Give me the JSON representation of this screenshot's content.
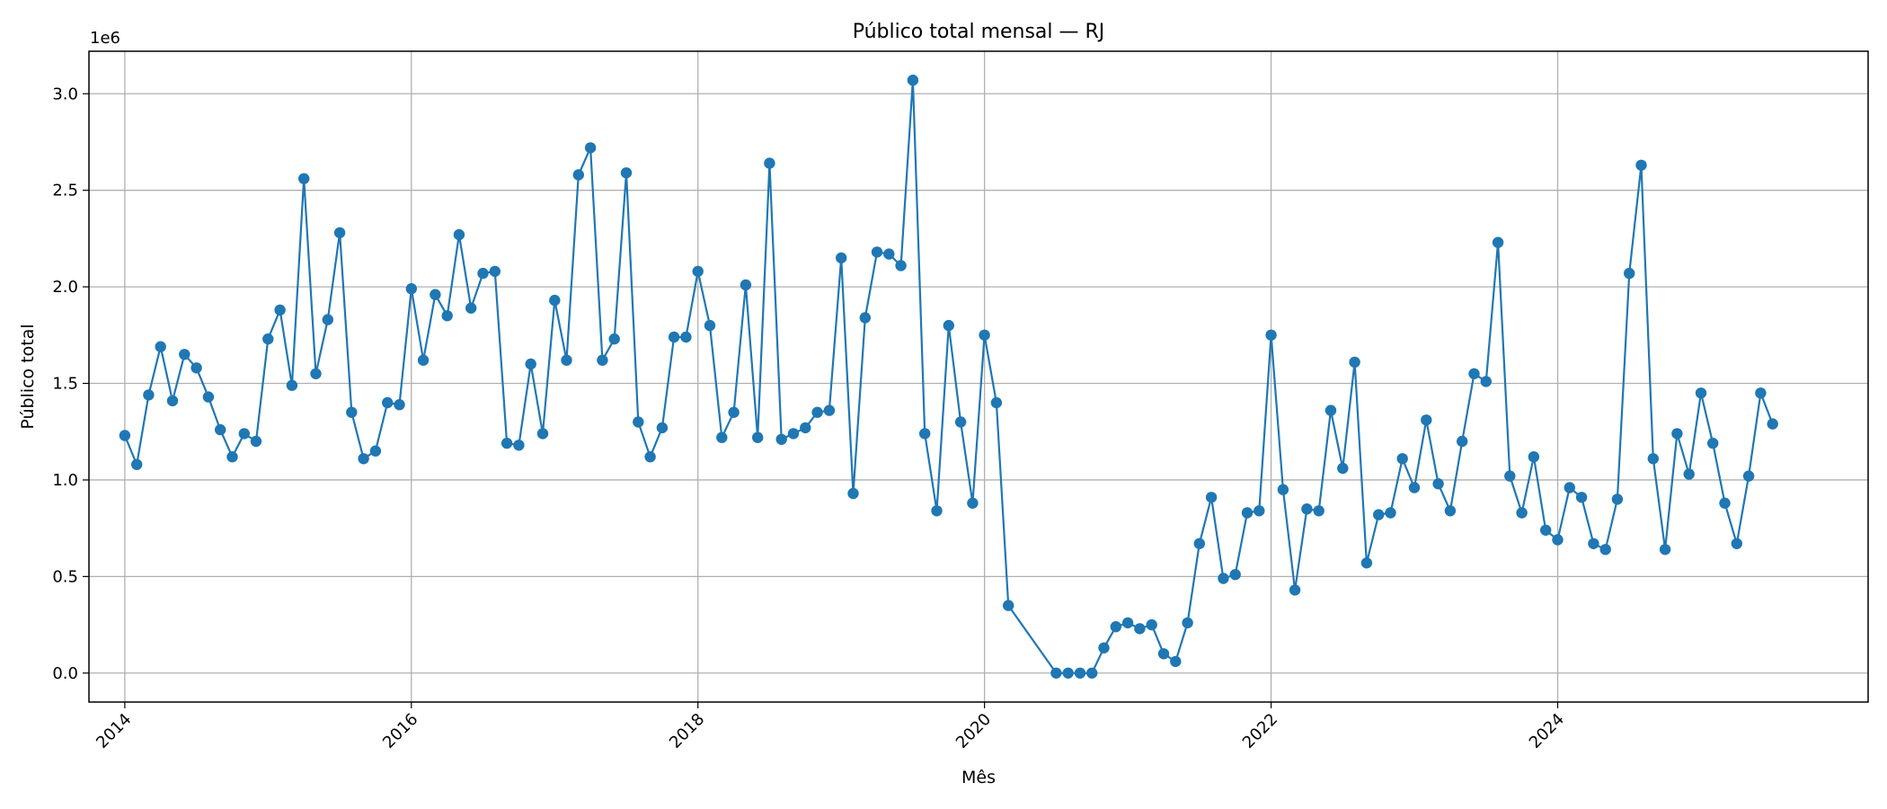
{
  "chart_data": {
    "type": "line",
    "title": "Público total mensal — RJ",
    "xlabel": "Mês",
    "ylabel": "Público total",
    "y_offset_label": "1e6",
    "x_ticks": [
      "2014",
      "2016",
      "2018",
      "2020",
      "2022",
      "2024"
    ],
    "y_ticks": [
      "0.0",
      "0.5",
      "1.0",
      "1.5",
      "2.0",
      "2.5",
      "3.0"
    ],
    "xlim": [
      "2013-10",
      "2026-03"
    ],
    "ylim": [
      -0.15,
      3.22
    ],
    "y_unit_multiplier": 1000000,
    "grid": true,
    "markers": true,
    "colors": {
      "series": "#1f77b4",
      "grid": "#b0b0b0",
      "axes": "#000000"
    },
    "series": [
      {
        "x": [
          "2014-01",
          "2014-02",
          "2014-03",
          "2014-04",
          "2014-05",
          "2014-06",
          "2014-07",
          "2014-08",
          "2014-09",
          "2014-10",
          "2014-11",
          "2014-12",
          "2015-01",
          "2015-02",
          "2015-03",
          "2015-04",
          "2015-05",
          "2015-06",
          "2015-07",
          "2015-08",
          "2015-09",
          "2015-10",
          "2015-11",
          "2015-12",
          "2016-01",
          "2016-02",
          "2016-03",
          "2016-04",
          "2016-05",
          "2016-06",
          "2016-07",
          "2016-08",
          "2016-09",
          "2016-10",
          "2016-11",
          "2016-12",
          "2017-01",
          "2017-02",
          "2017-03",
          "2017-04",
          "2017-05",
          "2017-06",
          "2017-07",
          "2017-08",
          "2017-09",
          "2017-10",
          "2017-11",
          "2017-12",
          "2018-01",
          "2018-02",
          "2018-03",
          "2018-04",
          "2018-05",
          "2018-06",
          "2018-07",
          "2018-08",
          "2018-09",
          "2018-10",
          "2018-11",
          "2018-12",
          "2019-01",
          "2019-02",
          "2019-03",
          "2019-04",
          "2019-05",
          "2019-06",
          "2019-07",
          "2019-08",
          "2019-09",
          "2019-10",
          "2019-11",
          "2019-12",
          "2020-01",
          "2020-02",
          "2020-03",
          "2020-07",
          "2020-08",
          "2020-09",
          "2020-10",
          "2020-11",
          "2020-12",
          "2021-01",
          "2021-02",
          "2021-03",
          "2021-04",
          "2021-05",
          "2021-06",
          "2021-07",
          "2021-08",
          "2021-09",
          "2021-10",
          "2021-11",
          "2021-12",
          "2022-01",
          "2022-02",
          "2022-03",
          "2022-04",
          "2022-05",
          "2022-06",
          "2022-07",
          "2022-08",
          "2022-09",
          "2022-10",
          "2022-11",
          "2022-12",
          "2023-01",
          "2023-02",
          "2023-03",
          "2023-04",
          "2023-05",
          "2023-06",
          "2023-07",
          "2023-08",
          "2023-09",
          "2023-10",
          "2023-11",
          "2023-12",
          "2024-01",
          "2024-02",
          "2024-03",
          "2024-04",
          "2024-05",
          "2024-06",
          "2024-07",
          "2024-08",
          "2024-09",
          "2024-10",
          "2024-11",
          "2024-12",
          "2025-01",
          "2025-02",
          "2025-03",
          "2025-04",
          "2025-05",
          "2025-06",
          "2025-07"
        ],
        "y": [
          1.23,
          1.08,
          1.44,
          1.69,
          1.41,
          1.65,
          1.58,
          1.43,
          1.26,
          1.12,
          1.24,
          1.2,
          1.73,
          1.88,
          1.49,
          2.56,
          1.55,
          1.83,
          2.28,
          1.35,
          1.11,
          1.15,
          1.4,
          1.39,
          1.99,
          1.62,
          1.96,
          1.85,
          2.27,
          1.89,
          2.07,
          2.08,
          1.19,
          1.18,
          1.6,
          1.24,
          1.93,
          1.62,
          2.58,
          2.72,
          1.62,
          1.73,
          2.59,
          1.3,
          1.12,
          1.27,
          1.74,
          1.74,
          2.08,
          1.8,
          1.22,
          1.35,
          2.01,
          1.22,
          2.64,
          1.21,
          1.24,
          1.27,
          1.35,
          1.36,
          2.15,
          0.93,
          1.84,
          2.18,
          2.17,
          2.11,
          3.07,
          1.24,
          0.84,
          1.8,
          1.3,
          0.88,
          1.75,
          1.4,
          0.35,
          0.0,
          0.0,
          0.0,
          0.0,
          0.13,
          0.24,
          0.26,
          0.23,
          0.25,
          0.1,
          0.06,
          0.26,
          0.67,
          0.91,
          0.49,
          0.51,
          0.83,
          0.84,
          1.75,
          0.95,
          0.43,
          0.85,
          0.84,
          1.36,
          1.06,
          1.61,
          0.57,
          0.82,
          0.83,
          1.11,
          0.96,
          1.31,
          0.98,
          0.84,
          1.2,
          1.55,
          1.51,
          2.23,
          1.02,
          0.83,
          1.12,
          0.74,
          0.69,
          0.96,
          0.91,
          0.67,
          0.64,
          0.9,
          2.07,
          2.63,
          1.11,
          0.64,
          1.24,
          1.03,
          1.45,
          1.19,
          0.88,
          0.67,
          1.02,
          1.45,
          1.29
        ]
      }
    ]
  }
}
